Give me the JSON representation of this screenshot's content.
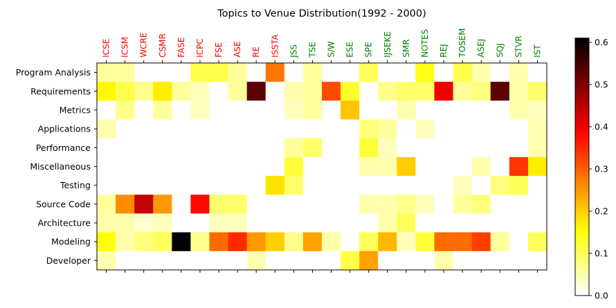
{
  "chart_data": {
    "type": "heatmap",
    "title": "Topics to Venue Distribution(1992 - 2000)",
    "xlabel": "",
    "ylabel": "",
    "columns": [
      "ICSE",
      "ICSM",
      "WCRE",
      "CSMR",
      "FASE",
      "ICPC",
      "FSE",
      "ASE",
      "RE",
      "ISSTA",
      "JSS",
      "TSE",
      "S/W",
      "ESE",
      "SPE",
      "IJSEKE",
      "SMR",
      "NOTES",
      "REJ",
      "TOSEM",
      "ASEJ",
      "SQJ",
      "STVR",
      "IST"
    ],
    "column_label_colors": {
      "conference": "#ff0000",
      "journal": "#008000"
    },
    "conference_count": 10,
    "rows": [
      "Program Analysis",
      "Requirements",
      "Metrics",
      "Applications",
      "Performance",
      "Miscellaneous",
      "Testing",
      "Source Code",
      "Architecture",
      "Modeling",
      "Developer"
    ],
    "values": [
      [
        0.06,
        0.06,
        0,
        0,
        0,
        0.11,
        0.11,
        0.06,
        0,
        0.28,
        0,
        0.06,
        0,
        0,
        0.1,
        0,
        0,
        0.14,
        0,
        0.11,
        0.05,
        0,
        0.05,
        0
      ],
      [
        0.16,
        0.11,
        0.07,
        0.17,
        0.06,
        0.04,
        0,
        0.06,
        0.53,
        0,
        0.05,
        0.06,
        0.32,
        0.13,
        0,
        0.07,
        0.09,
        0.09,
        0.4,
        0.06,
        0.08,
        0.53,
        0.05,
        0.09
      ],
      [
        0,
        0.07,
        0,
        0.06,
        0,
        0.04,
        0,
        0,
        0,
        0,
        0.04,
        0.06,
        0,
        0.21,
        0,
        0,
        0.05,
        0,
        0,
        0,
        0,
        0,
        0.05,
        0.04
      ],
      [
        0.05,
        0,
        0,
        0,
        0,
        0,
        0,
        0,
        0,
        0,
        0,
        0,
        0,
        0,
        0.08,
        0.06,
        0,
        0.04,
        0,
        0,
        0,
        0,
        0,
        0.05
      ],
      [
        0,
        0,
        0,
        0,
        0,
        0,
        0,
        0,
        0,
        0,
        0.06,
        0.09,
        0,
        0,
        0.12,
        0.04,
        0,
        0,
        0,
        0,
        0,
        0,
        0,
        0.05
      ],
      [
        0,
        0,
        0,
        0,
        0,
        0,
        0,
        0,
        0,
        0,
        0.12,
        0,
        0,
        0,
        0.05,
        0.05,
        0.2,
        0,
        0,
        0,
        0.05,
        0,
        0.34,
        0.17
      ],
      [
        0,
        0,
        0,
        0,
        0,
        0,
        0,
        0,
        0,
        0.18,
        0.09,
        0,
        0,
        0,
        0,
        0,
        0,
        0,
        0,
        0.04,
        0,
        0.08,
        0.1,
        0
      ],
      [
        0.06,
        0.26,
        0.44,
        0.25,
        0,
        0.38,
        0.09,
        0.09,
        0,
        0,
        0,
        0,
        0,
        0,
        0.05,
        0.05,
        0.07,
        0.04,
        0,
        0.06,
        0.08,
        0,
        0,
        0
      ],
      [
        0.05,
        0.05,
        0.03,
        0.04,
        0,
        0,
        0.04,
        0.04,
        0,
        0,
        0,
        0,
        0,
        0,
        0,
        0.05,
        0.1,
        0,
        0,
        0,
        0,
        0,
        0,
        0
      ],
      [
        0.15,
        0.05,
        0.08,
        0.1,
        0.61,
        0.07,
        0.29,
        0.35,
        0.25,
        0.2,
        0.07,
        0.24,
        0.05,
        0,
        0.1,
        0.22,
        0.04,
        0.12,
        0.29,
        0.29,
        0.33,
        0.06,
        0,
        0.1
      ],
      [
        0.05,
        0,
        0,
        0,
        0,
        0,
        0,
        0,
        0.05,
        0,
        0,
        0,
        0,
        0.11,
        0.24,
        0,
        0,
        0,
        0.05,
        0,
        0,
        0,
        0,
        0
      ]
    ],
    "colorbar": {
      "min": 0.0,
      "max": 0.61,
      "ticks": [
        0.0,
        0.1,
        0.2,
        0.3,
        0.4,
        0.5,
        0.6
      ],
      "tick_labels": [
        "0.0",
        "0.1",
        "0.2",
        "0.3",
        "0.4",
        "0.5",
        "0.6"
      ],
      "colormap": "hot_r"
    }
  }
}
